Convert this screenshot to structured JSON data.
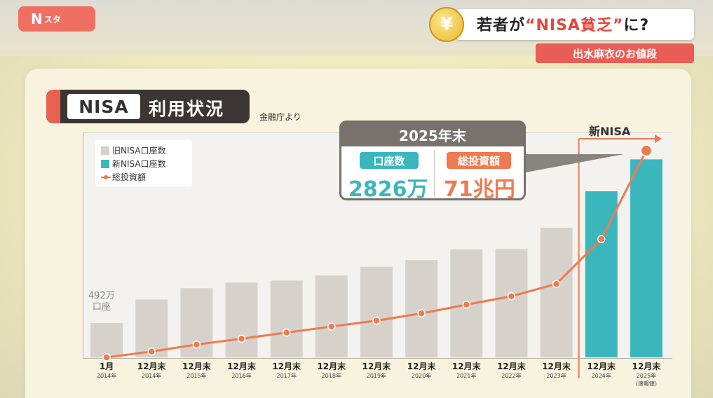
{
  "header": {
    "logo_main": "N",
    "logo_sub": "スタ",
    "yen_symbol": "¥",
    "headline_pre": "若者が",
    "headline_highlight": "“NISA貧乏”",
    "headline_post": "に?",
    "subhead": "出水麻衣のお値段"
  },
  "chart_title": {
    "box": "NISA",
    "rest": "利用状況",
    "source": "金融庁より"
  },
  "callout": {
    "header": "2025年末",
    "left_label": "口座数",
    "left_value": "2826万",
    "right_label": "総投資額",
    "right_value": "71兆円"
  },
  "annotation_first": [
    "492万",
    "口座"
  ],
  "new_nisa_label": "新NISA",
  "colors": {
    "old_nisa": "#d6d2cb",
    "new_nisa": "#3cb6bd",
    "investment": "#ee7a4f",
    "accent_red": "#e8453c"
  },
  "chart_data": {
    "type": "bar",
    "title": "NISA 利用状況",
    "categories": [
      "1月",
      "12月末",
      "12月末",
      "12月末",
      "12月末",
      "12月末",
      "12月末",
      "12月末",
      "12月末",
      "12月末",
      "12月末",
      "12月末",
      "12月末"
    ],
    "category_years": [
      "2014年",
      "2014年",
      "2015年",
      "2016年",
      "2017年",
      "2018年",
      "2019年",
      "2020年",
      "2021年",
      "2022年",
      "2023年",
      "2024年",
      "2025年"
    ],
    "category_notes": [
      "",
      "",
      "",
      "",
      "",
      "",
      "",
      "",
      "",
      "",
      "",
      "",
      "(速報値)"
    ],
    "series": [
      {
        "name": "旧NISA口座数",
        "unit": "万口座",
        "values": [
          492,
          825,
          988,
          1068,
          1096,
          1168,
          1293,
          1388,
          1540,
          1546,
          1850,
          null,
          null
        ]
      },
      {
        "name": "新NISA口座数",
        "unit": "万口座",
        "values": [
          null,
          null,
          null,
          null,
          null,
          null,
          null,
          null,
          null,
          null,
          null,
          2370,
          2826
        ]
      },
      {
        "name": "総投資額",
        "unit": "兆円",
        "type": "line",
        "values": [
          0,
          2,
          4.4,
          6.4,
          8.5,
          10.6,
          12.6,
          15.1,
          18.1,
          21.0,
          25.2,
          40.6,
          71
        ]
      }
    ],
    "ylim": [
      0,
      3200
    ],
    "y2lim": [
      0,
      77
    ],
    "legend": "top-left",
    "grid": false
  }
}
